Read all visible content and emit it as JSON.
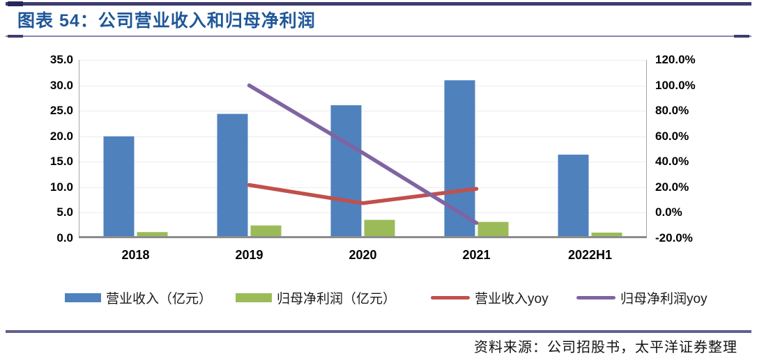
{
  "header": {
    "title": "图表 54：公司营业收入和归母净利润"
  },
  "footer": {
    "source": "资料来源：公司招股书，太平洋证券整理"
  },
  "colors": {
    "title_text": "#1f5799",
    "top_rule": "#3d3d71",
    "rule_cap": "#26265c",
    "underline_thin": "#8585ad",
    "bottom_rule": "#5f5f8f",
    "axis_line": "#a6a6a6",
    "axis_bottom": "#8c8c8c",
    "gridline": "#ececec",
    "bar_blue": "#4F81BD",
    "bar_green": "#9BBB59",
    "line_red": "#C0504D",
    "line_purple": "#8064A2"
  },
  "chart_data": {
    "type": "bar",
    "subtype": "combo-bar-line-dual-axis",
    "categories": [
      "2018",
      "2019",
      "2020",
      "2021",
      "2022H1"
    ],
    "series": [
      {
        "name": "营业收入（亿元）",
        "kind": "bar",
        "axis": "left",
        "color": "#4F81BD",
        "values": [
          20.0,
          24.4,
          26.1,
          31.0,
          16.4
        ]
      },
      {
        "name": "归母净利润（亿元）",
        "kind": "bar",
        "axis": "left",
        "color": "#9BBB59",
        "values": [
          1.2,
          2.5,
          3.6,
          3.2,
          1.1
        ]
      },
      {
        "name": "营业收入yoy",
        "kind": "line",
        "axis": "right",
        "color": "#C0504D",
        "values": [
          null,
          21.8,
          7.5,
          18.8,
          null
        ]
      },
      {
        "name": "归母净利润yoy",
        "kind": "line",
        "axis": "right",
        "color": "#8064A2",
        "values": [
          null,
          100.0,
          47.0,
          -8.0,
          null
        ]
      }
    ],
    "left_axis": {
      "min": 0,
      "max": 35,
      "step": 5,
      "tick_labels": [
        "0.0",
        "5.0",
        "10.0",
        "15.0",
        "20.0",
        "25.0",
        "30.0",
        "35.0"
      ]
    },
    "right_axis": {
      "min": -20,
      "max": 120,
      "step": 20,
      "tick_labels": [
        "-20.0%",
        "0.0%",
        "20.0%",
        "40.0%",
        "60.0%",
        "80.0%",
        "100.0%",
        "120.0%"
      ]
    },
    "grid": true,
    "legend_position": "bottom"
  }
}
